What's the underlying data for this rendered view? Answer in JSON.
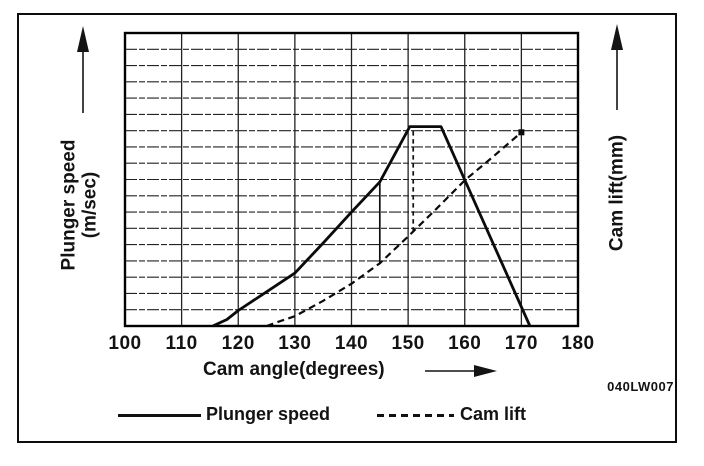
{
  "figure": {
    "code": "040LW007"
  },
  "axes": {
    "x_label": "Cam angle(degrees)",
    "y_left_label_line1": "Plunger speed",
    "y_left_label_line2": "(m/sec)",
    "y_right_label": "Cam lift(mm)"
  },
  "chart_data": {
    "type": "line",
    "title": "",
    "xlabel": "Cam angle(degrees)",
    "ylabel_left": "Plunger speed (m/sec)",
    "ylabel_right": "Cam lift(mm)",
    "xlim": [
      100,
      180
    ],
    "x_ticks": [
      100,
      110,
      120,
      130,
      140,
      150,
      160,
      170,
      180
    ],
    "y_axis_note": "no numeric y tick labels shown; y values expressed in grid-row units, 0 (bottom axis) to 18 (top axis)",
    "grid": {
      "on": true,
      "x_divisions": 8,
      "y_divisions": 18
    },
    "legend_position": "bottom",
    "series": [
      {
        "name": "Plunger speed",
        "style": "solid",
        "axis": "left",
        "points": [
          [
            115.5,
            0
          ],
          [
            118,
            0.4
          ],
          [
            120,
            0.95
          ],
          [
            125,
            2.1
          ],
          [
            130,
            3.25
          ],
          [
            135,
            5.1
          ],
          [
            140,
            7.0
          ],
          [
            145,
            8.85
          ],
          [
            150.3,
            12.25
          ],
          [
            155.8,
            12.25
          ],
          [
            171.5,
            0
          ]
        ]
      },
      {
        "name": "Cam lift",
        "style": "dashed",
        "axis": "right",
        "points": [
          [
            125,
            0
          ],
          [
            127,
            0.25
          ],
          [
            130,
            0.6
          ],
          [
            135,
            1.55
          ],
          [
            140,
            2.6
          ],
          [
            145,
            3.85
          ],
          [
            150,
            5.5
          ],
          [
            155,
            7.2
          ],
          [
            160,
            8.95
          ],
          [
            165,
            10.4
          ],
          [
            170,
            11.9
          ]
        ]
      }
    ],
    "annotations": [
      {
        "type": "vline",
        "style": "solid",
        "x": 145,
        "row_from": 3.9,
        "row_to": 8.85
      },
      {
        "type": "vline",
        "style": "dashed",
        "x": 150.9,
        "row_from": 5.8,
        "row_to": 12.25
      },
      {
        "type": "marker",
        "shape": "square",
        "x": 170,
        "row": 11.9
      }
    ]
  }
}
